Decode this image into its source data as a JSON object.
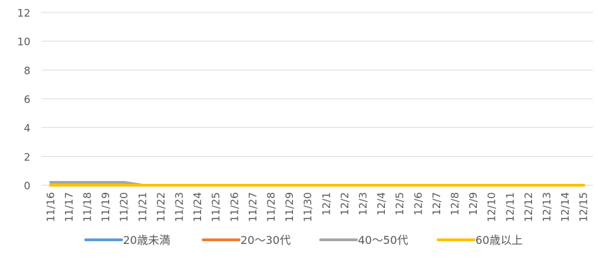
{
  "chart_data": {
    "type": "line",
    "title": "",
    "xlabel": "",
    "ylabel": "",
    "ylim": [
      0,
      12
    ],
    "yticks": [
      0,
      2,
      4,
      6,
      8,
      10,
      12
    ],
    "grid": true,
    "legend_position": "bottom",
    "categories": [
      "11/16",
      "11/17",
      "11/18",
      "11/19",
      "11/20",
      "11/21",
      "11/22",
      "11/23",
      "11/24",
      "11/25",
      "11/26",
      "11/27",
      "11/28",
      "11/29",
      "11/30",
      "12/1",
      "12/2",
      "12/3",
      "12/4",
      "12/5",
      "12/6",
      "12/7",
      "12/8",
      "12/9",
      "12/10",
      "12/11",
      "12/12",
      "12/13",
      "12/14",
      "12/15"
    ],
    "series": [
      {
        "name": "20歳未満",
        "color": "#5b9bd5",
        "values": [
          0,
          0,
          0,
          0,
          0,
          0,
          0,
          0,
          0,
          0,
          0,
          0,
          0,
          0,
          0,
          0,
          0,
          0,
          0,
          0,
          0,
          0,
          0,
          0,
          0,
          0,
          0,
          0,
          0,
          0
        ]
      },
      {
        "name": "20〜30代",
        "color": "#ed7d31",
        "values": [
          0,
          0,
          0,
          0,
          0,
          0,
          0,
          0,
          0,
          0,
          0,
          0,
          0,
          0,
          0,
          0,
          0,
          0,
          0,
          0,
          0,
          0,
          0,
          0,
          0,
          0,
          0,
          0,
          0,
          0
        ]
      },
      {
        "name": "40〜50代",
        "color": "#a5a5a5",
        "values": [
          0.2,
          0.2,
          0.2,
          0.2,
          0.2,
          0,
          0,
          0,
          0,
          0,
          0,
          0,
          0,
          0,
          0,
          0,
          0,
          0,
          0,
          0,
          0,
          0,
          0,
          0,
          0,
          0,
          0,
          0,
          0,
          0
        ]
      },
      {
        "name": "60歳以上",
        "color": "#ffc000",
        "values": [
          0,
          0,
          0,
          0,
          0,
          0,
          0,
          0,
          0,
          0,
          0,
          0,
          0,
          0,
          0,
          0,
          0,
          0,
          0,
          0,
          0,
          0,
          0,
          0,
          0,
          0,
          0,
          0,
          0,
          0
        ]
      }
    ]
  }
}
